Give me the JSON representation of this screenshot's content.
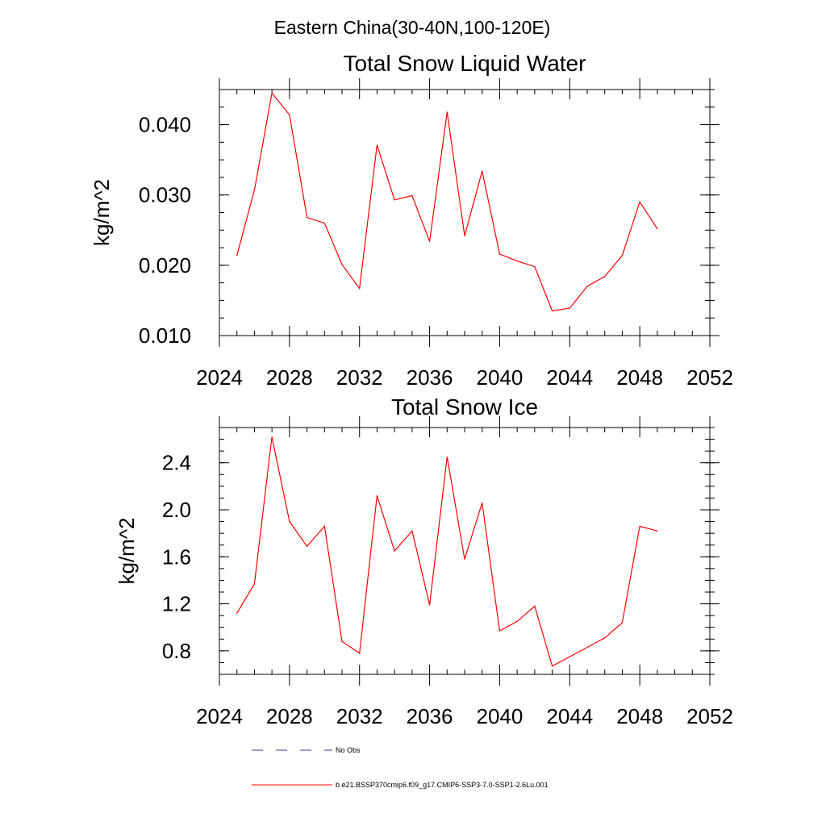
{
  "figure": {
    "title": "Eastern China(30-40N,100-120E)"
  },
  "chart_data": [
    {
      "type": "line",
      "title": "Total Snow Liquid Water",
      "xlabel": "",
      "ylabel": "kg/m^2",
      "xlim": [
        2024,
        2052
      ],
      "ylim": [
        0.01,
        0.045
      ],
      "x_ticks": [
        2024,
        2028,
        2032,
        2036,
        2040,
        2044,
        2048,
        2052
      ],
      "x_tick_labels": [
        "2024",
        "2028",
        "2032",
        "2036",
        "2040",
        "2044",
        "2048",
        "2052"
      ],
      "y_ticks": [
        0.01,
        0.02,
        0.03,
        0.04
      ],
      "y_tick_labels": [
        "0.010",
        "0.020",
        "0.030",
        "0.040"
      ],
      "grid": false,
      "series": [
        {
          "name": "b.e21.BSSP370cmip6.f09_g17.CMIP6-SSP3-7.0-SSP1-2.6Lu.001",
          "color": "#ff0000",
          "x": [
            2025,
            2026,
            2027,
            2028,
            2029,
            2030,
            2031,
            2032,
            2033,
            2034,
            2035,
            2036,
            2037,
            2038,
            2039,
            2040,
            2041,
            2042,
            2043,
            2044,
            2045,
            2046,
            2047,
            2048,
            2049
          ],
          "y": [
            0.0214,
            0.0307,
            0.0445,
            0.0414,
            0.0268,
            0.026,
            0.0201,
            0.0167,
            0.0371,
            0.0293,
            0.0299,
            0.0234,
            0.0418,
            0.0242,
            0.0334,
            0.0216,
            0.0206,
            0.0198,
            0.0135,
            0.0139,
            0.017,
            0.0184,
            0.0214,
            0.029,
            0.0252
          ]
        }
      ]
    },
    {
      "type": "line",
      "title": "Total Snow Ice",
      "xlabel": "",
      "ylabel": "kg/m^2",
      "xlim": [
        2024,
        2052
      ],
      "ylim": [
        0.6,
        2.7
      ],
      "x_ticks": [
        2024,
        2028,
        2032,
        2036,
        2040,
        2044,
        2048,
        2052
      ],
      "x_tick_labels": [
        "2024",
        "2028",
        "2032",
        "2036",
        "2040",
        "2044",
        "2048",
        "2052"
      ],
      "y_ticks": [
        0.8,
        1.2,
        1.6,
        2.0,
        2.4
      ],
      "y_tick_labels": [
        "0.8",
        "1.2",
        "1.6",
        "2.0",
        "2.4"
      ],
      "grid": false,
      "series": [
        {
          "name": "b.e21.BSSP370cmip6.f09_g17.CMIP6-SSP3-7.0-SSP1-2.6Lu.001",
          "color": "#ff0000",
          "x": [
            2025,
            2026,
            2027,
            2028,
            2029,
            2030,
            2031,
            2032,
            2033,
            2034,
            2035,
            2036,
            2037,
            2038,
            2039,
            2040,
            2041,
            2042,
            2043,
            2044,
            2045,
            2046,
            2047,
            2048,
            2049
          ],
          "y": [
            1.12,
            1.37,
            2.62,
            1.9,
            1.69,
            1.86,
            0.88,
            0.78,
            2.12,
            1.65,
            1.82,
            1.19,
            2.45,
            1.58,
            2.06,
            0.97,
            1.05,
            1.18,
            0.67,
            0.75,
            0.83,
            0.91,
            1.04,
            1.86,
            1.82
          ]
        }
      ]
    }
  ],
  "legend": {
    "placement": "bottom",
    "entries": [
      {
        "label": "No Obs",
        "color": "#3b3b8f",
        "style": "dashed"
      },
      {
        "label": "b.e21.BSSP370cmip6.f09_g17.CMIP6-SSP3-7.0-SSP1-2.6Lu.001",
        "color": "#ff0000",
        "style": "solid"
      }
    ]
  }
}
